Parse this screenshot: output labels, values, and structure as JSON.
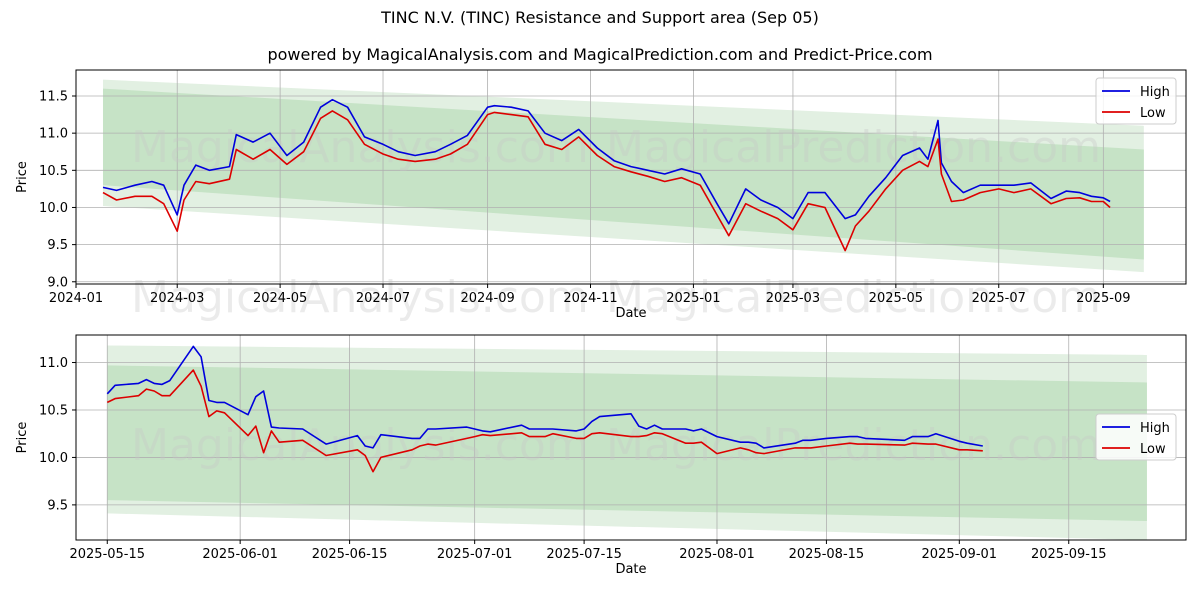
{
  "title": "TINC N.V. (TINC) Resistance and Support area (Sep 05)",
  "subtitle": "powered by MagicalAnalysis.com and MagicalPrediction.com and Predict-Price.com",
  "watermarks": [
    "MagicalAnalysis.com",
    "MagicalPrediction.com"
  ],
  "colors": {
    "high": "#0000dd",
    "low": "#dd0000",
    "band_outer": "#e2f0e2",
    "band_inner": "#c6e3c6",
    "grid": "#b0b0b0"
  },
  "chart_data": [
    {
      "type": "line",
      "xlabel": "Date",
      "ylabel": "Price",
      "xlim": [
        "2024-01-01",
        "2025-10-20"
      ],
      "ylim": [
        8.97,
        11.85
      ],
      "xticks": [
        "2024-01-01",
        "2024-03-01",
        "2024-05-01",
        "2024-07-01",
        "2024-09-01",
        "2024-11-01",
        "2025-01-01",
        "2025-03-01",
        "2025-05-01",
        "2025-07-01",
        "2025-09-01"
      ],
      "xtick_labels": [
        "2024-01",
        "2024-03",
        "2024-05",
        "2024-07",
        "2024-09",
        "2024-11",
        "2025-01",
        "2025-03",
        "2025-05",
        "2025-07",
        "2025-09"
      ],
      "yticks": [
        9.0,
        9.5,
        10.0,
        10.5,
        11.0,
        11.5
      ],
      "ytick_labels": [
        "9.0",
        "9.5",
        "10.0",
        "10.5",
        "11.0",
        "11.5"
      ],
      "grid": true,
      "legend": "top-right",
      "bands": [
        {
          "role": "outer",
          "x": [
            "2024-01-17",
            "2025-09-25"
          ],
          "top": [
            11.72,
            11.1
          ],
          "bottom": [
            10.02,
            9.13
          ]
        },
        {
          "role": "inner",
          "x": [
            "2024-01-17",
            "2025-09-25"
          ],
          "top": [
            11.6,
            10.78
          ],
          "bottom": [
            10.3,
            9.3
          ]
        }
      ],
      "series": [
        {
          "name": "High",
          "color": "#0000dd",
          "x": [
            "2024-01-17",
            "2024-01-25",
            "2024-02-05",
            "2024-02-15",
            "2024-02-22",
            "2024-03-01",
            "2024-03-05",
            "2024-03-12",
            "2024-03-20",
            "2024-04-01",
            "2024-04-05",
            "2024-04-15",
            "2024-04-25",
            "2024-05-05",
            "2024-05-15",
            "2024-05-25",
            "2024-06-01",
            "2024-06-10",
            "2024-06-20",
            "2024-07-01",
            "2024-07-10",
            "2024-07-20",
            "2024-08-01",
            "2024-08-10",
            "2024-08-20",
            "2024-09-01",
            "2024-09-05",
            "2024-09-15",
            "2024-09-25",
            "2024-10-05",
            "2024-10-15",
            "2024-10-25",
            "2024-11-05",
            "2024-11-15",
            "2024-11-25",
            "2024-12-05",
            "2024-12-15",
            "2024-12-25",
            "2025-01-05",
            "2025-01-15",
            "2025-01-22",
            "2025-02-01",
            "2025-02-10",
            "2025-02-20",
            "2025-03-01",
            "2025-03-10",
            "2025-03-20",
            "2025-04-01",
            "2025-04-07",
            "2025-04-15",
            "2025-04-25",
            "2025-05-05",
            "2025-05-15",
            "2025-05-20",
            "2025-05-26",
            "2025-05-28",
            "2025-06-03",
            "2025-06-10",
            "2025-06-20",
            "2025-07-01",
            "2025-07-10",
            "2025-07-20",
            "2025-08-01",
            "2025-08-10",
            "2025-08-18",
            "2025-08-25",
            "2025-09-01",
            "2025-09-05"
          ],
          "y": [
            10.27,
            10.23,
            10.3,
            10.35,
            10.3,
            9.9,
            10.3,
            10.57,
            10.5,
            10.55,
            10.98,
            10.88,
            11.0,
            10.7,
            10.88,
            11.35,
            11.45,
            11.35,
            10.95,
            10.85,
            10.75,
            10.7,
            10.75,
            10.85,
            10.97,
            11.35,
            11.37,
            11.35,
            11.3,
            11.0,
            10.9,
            11.05,
            10.8,
            10.63,
            10.55,
            10.5,
            10.45,
            10.52,
            10.45,
            10.05,
            9.78,
            10.25,
            10.1,
            10.0,
            9.85,
            10.2,
            10.2,
            9.85,
            9.9,
            10.15,
            10.4,
            10.7,
            10.8,
            10.65,
            11.17,
            10.6,
            10.35,
            10.2,
            10.3,
            10.3,
            10.3,
            10.33,
            10.12,
            10.22,
            10.2,
            10.15,
            10.13,
            10.08
          ]
        },
        {
          "name": "Low",
          "color": "#dd0000",
          "x": [
            "2024-01-17",
            "2024-01-25",
            "2024-02-05",
            "2024-02-15",
            "2024-02-22",
            "2024-03-01",
            "2024-03-05",
            "2024-03-12",
            "2024-03-20",
            "2024-04-01",
            "2024-04-05",
            "2024-04-15",
            "2024-04-25",
            "2024-05-05",
            "2024-05-15",
            "2024-05-25",
            "2024-06-01",
            "2024-06-10",
            "2024-06-20",
            "2024-07-01",
            "2024-07-10",
            "2024-07-20",
            "2024-08-01",
            "2024-08-10",
            "2024-08-20",
            "2024-09-01",
            "2024-09-05",
            "2024-09-15",
            "2024-09-25",
            "2024-10-05",
            "2024-10-15",
            "2024-10-25",
            "2024-11-05",
            "2024-11-15",
            "2024-11-25",
            "2024-12-05",
            "2024-12-15",
            "2024-12-25",
            "2025-01-05",
            "2025-01-15",
            "2025-01-22",
            "2025-02-01",
            "2025-02-10",
            "2025-02-20",
            "2025-03-01",
            "2025-03-10",
            "2025-03-20",
            "2025-04-01",
            "2025-04-07",
            "2025-04-15",
            "2025-04-25",
            "2025-05-05",
            "2025-05-15",
            "2025-05-20",
            "2025-05-26",
            "2025-05-28",
            "2025-06-03",
            "2025-06-10",
            "2025-06-20",
            "2025-07-01",
            "2025-07-10",
            "2025-07-20",
            "2025-08-01",
            "2025-08-10",
            "2025-08-18",
            "2025-08-25",
            "2025-09-01",
            "2025-09-05"
          ],
          "y": [
            10.2,
            10.1,
            10.15,
            10.15,
            10.05,
            9.68,
            10.1,
            10.35,
            10.32,
            10.38,
            10.78,
            10.65,
            10.78,
            10.58,
            10.75,
            11.2,
            11.3,
            11.18,
            10.85,
            10.72,
            10.65,
            10.62,
            10.65,
            10.72,
            10.85,
            11.25,
            11.28,
            11.25,
            11.22,
            10.85,
            10.78,
            10.95,
            10.7,
            10.55,
            10.48,
            10.42,
            10.35,
            10.4,
            10.3,
            9.9,
            9.62,
            10.05,
            9.95,
            9.85,
            9.7,
            10.05,
            10.0,
            9.42,
            9.75,
            9.95,
            10.25,
            10.5,
            10.62,
            10.55,
            10.92,
            10.45,
            10.08,
            10.1,
            10.2,
            10.25,
            10.2,
            10.25,
            10.05,
            10.12,
            10.13,
            10.08,
            10.08,
            10.0
          ]
        }
      ]
    },
    {
      "type": "line",
      "xlabel": "Date",
      "ylabel": "Price",
      "xlim": [
        "2025-05-11",
        "2025-09-30"
      ],
      "ylim": [
        9.13,
        11.29
      ],
      "xticks": [
        "2025-05-15",
        "2025-06-01",
        "2025-06-15",
        "2025-07-01",
        "2025-07-15",
        "2025-08-01",
        "2025-08-15",
        "2025-09-01",
        "2025-09-15"
      ],
      "xtick_labels": [
        "2025-05-15",
        "2025-06-01",
        "2025-06-15",
        "2025-07-01",
        "2025-07-15",
        "2025-08-01",
        "2025-08-15",
        "2025-09-01",
        "2025-09-15"
      ],
      "yticks": [
        9.5,
        10.0,
        10.5,
        11.0
      ],
      "ytick_labels": [
        "9.5",
        "10.0",
        "10.5",
        "11.0"
      ],
      "grid": true,
      "legend": "center-right",
      "bands": [
        {
          "role": "outer",
          "x": [
            "2025-05-15",
            "2025-09-25"
          ],
          "top": [
            11.18,
            11.08
          ],
          "bottom": [
            9.41,
            9.13
          ]
        },
        {
          "role": "inner",
          "x": [
            "2025-05-15",
            "2025-09-25"
          ],
          "top": [
            10.97,
            10.79
          ],
          "bottom": [
            9.55,
            9.33
          ]
        }
      ],
      "series": [
        {
          "name": "High",
          "color": "#0000dd",
          "x": [
            "2025-05-15",
            "2025-05-16",
            "2025-05-19",
            "2025-05-20",
            "2025-05-21",
            "2025-05-22",
            "2025-05-23",
            "2025-05-26",
            "2025-05-27",
            "2025-05-28",
            "2025-05-29",
            "2025-05-30",
            "2025-06-02",
            "2025-06-03",
            "2025-06-04",
            "2025-06-05",
            "2025-06-06",
            "2025-06-09",
            "2025-06-12",
            "2025-06-16",
            "2025-06-17",
            "2025-06-18",
            "2025-06-19",
            "2025-06-23",
            "2025-06-24",
            "2025-06-25",
            "2025-06-26",
            "2025-06-30",
            "2025-07-01",
            "2025-07-02",
            "2025-07-03",
            "2025-07-07",
            "2025-07-08",
            "2025-07-09",
            "2025-07-10",
            "2025-07-11",
            "2025-07-14",
            "2025-07-15",
            "2025-07-16",
            "2025-07-17",
            "2025-07-21",
            "2025-07-22",
            "2025-07-23",
            "2025-07-24",
            "2025-07-25",
            "2025-07-28",
            "2025-07-29",
            "2025-07-30",
            "2025-08-01",
            "2025-08-04",
            "2025-08-05",
            "2025-08-06",
            "2025-08-07",
            "2025-08-11",
            "2025-08-12",
            "2025-08-13",
            "2025-08-15",
            "2025-08-18",
            "2025-08-19",
            "2025-08-20",
            "2025-08-25",
            "2025-08-26",
            "2025-08-28",
            "2025-08-29",
            "2025-09-01",
            "2025-09-02",
            "2025-09-04"
          ],
          "y": [
            10.67,
            10.76,
            10.78,
            10.82,
            10.78,
            10.77,
            10.81,
            11.17,
            11.06,
            10.6,
            10.58,
            10.58,
            10.45,
            10.64,
            10.7,
            10.32,
            10.31,
            10.3,
            10.14,
            10.23,
            10.12,
            10.1,
            10.24,
            10.2,
            10.2,
            10.3,
            10.3,
            10.32,
            10.3,
            10.28,
            10.27,
            10.34,
            10.3,
            10.3,
            10.3,
            10.3,
            10.28,
            10.3,
            10.38,
            10.43,
            10.46,
            10.33,
            10.3,
            10.34,
            10.3,
            10.3,
            10.28,
            10.3,
            10.22,
            10.16,
            10.16,
            10.15,
            10.1,
            10.15,
            10.18,
            10.18,
            10.2,
            10.22,
            10.22,
            10.2,
            10.18,
            10.22,
            10.22,
            10.25,
            10.17,
            10.15,
            10.12
          ]
        },
        {
          "name": "Low",
          "color": "#dd0000",
          "x": [
            "2025-05-15",
            "2025-05-16",
            "2025-05-19",
            "2025-05-20",
            "2025-05-21",
            "2025-05-22",
            "2025-05-23",
            "2025-05-26",
            "2025-05-27",
            "2025-05-28",
            "2025-05-29",
            "2025-05-30",
            "2025-06-02",
            "2025-06-03",
            "2025-06-04",
            "2025-06-05",
            "2025-06-06",
            "2025-06-09",
            "2025-06-12",
            "2025-06-16",
            "2025-06-17",
            "2025-06-18",
            "2025-06-19",
            "2025-06-23",
            "2025-06-24",
            "2025-06-25",
            "2025-06-26",
            "2025-06-30",
            "2025-07-01",
            "2025-07-02",
            "2025-07-03",
            "2025-07-07",
            "2025-07-08",
            "2025-07-09",
            "2025-07-10",
            "2025-07-11",
            "2025-07-14",
            "2025-07-15",
            "2025-07-16",
            "2025-07-17",
            "2025-07-21",
            "2025-07-22",
            "2025-07-23",
            "2025-07-24",
            "2025-07-25",
            "2025-07-28",
            "2025-07-29",
            "2025-07-30",
            "2025-08-01",
            "2025-08-04",
            "2025-08-05",
            "2025-08-06",
            "2025-08-07",
            "2025-08-11",
            "2025-08-12",
            "2025-08-13",
            "2025-08-15",
            "2025-08-18",
            "2025-08-19",
            "2025-08-20",
            "2025-08-25",
            "2025-08-26",
            "2025-08-28",
            "2025-08-29",
            "2025-09-01",
            "2025-09-02",
            "2025-09-04"
          ],
          "y": [
            10.58,
            10.62,
            10.65,
            10.72,
            10.7,
            10.65,
            10.65,
            10.92,
            10.75,
            10.43,
            10.49,
            10.47,
            10.23,
            10.33,
            10.05,
            10.28,
            10.16,
            10.18,
            10.02,
            10.08,
            10.02,
            9.85,
            10.0,
            10.08,
            10.12,
            10.14,
            10.13,
            10.2,
            10.22,
            10.24,
            10.23,
            10.26,
            10.22,
            10.22,
            10.22,
            10.25,
            10.2,
            10.2,
            10.25,
            10.26,
            10.22,
            10.22,
            10.23,
            10.26,
            10.25,
            10.15,
            10.15,
            10.16,
            10.04,
            10.1,
            10.08,
            10.05,
            10.04,
            10.1,
            10.1,
            10.1,
            10.12,
            10.15,
            10.14,
            10.14,
            10.13,
            10.15,
            10.14,
            10.14,
            10.08,
            10.08,
            10.07
          ]
        }
      ]
    }
  ]
}
